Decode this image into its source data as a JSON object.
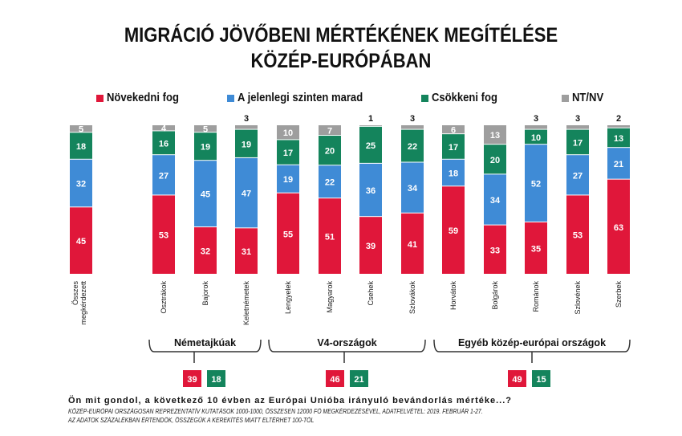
{
  "title_line1": "MIGRÁCIÓ JÖVŐBENI MÉRTÉKÉNEK MEGÍTÉLÉSE",
  "title_line2": "KÖZÉP-EURÓPÁBAN",
  "legend": [
    {
      "label": "Növekedni fog",
      "color": "#e0173a"
    },
    {
      "label": "A jelenlegi szinten marad",
      "color": "#3f8bd6"
    },
    {
      "label": "Csökkeni fog",
      "color": "#14845c"
    },
    {
      "label": "NT/NV",
      "color": "#9e9e9e"
    }
  ],
  "chart_data": {
    "type": "bar",
    "stacked": true,
    "title": "MIGRÁCIÓ JÖVŐBENI MÉRTÉKÉNEK MEGÍTÉLÉSE KÖZÉP-EURÓPÁBAN",
    "unit": "%",
    "categories": [
      "Összes megkérdezett",
      "Osztrákok",
      "Bajorok",
      "Keletnémetek",
      "Lengyelek",
      "Magyarok",
      "Csehek",
      "Szlovákok",
      "Horvátok",
      "Bolgárok",
      "Románok",
      "Szlovének",
      "Szerbek"
    ],
    "series": [
      {
        "name": "Növekedni fog",
        "color": "#e0173a",
        "values": [
          45,
          53,
          32,
          31,
          55,
          51,
          39,
          41,
          59,
          33,
          35,
          53,
          63
        ]
      },
      {
        "name": "A jelenlegi szinten marad",
        "color": "#3f8bd6",
        "values": [
          32,
          27,
          45,
          47,
          19,
          22,
          36,
          34,
          18,
          34,
          52,
          27,
          21
        ]
      },
      {
        "name": "Csökkeni fog",
        "color": "#14845c",
        "values": [
          18,
          16,
          19,
          19,
          17,
          20,
          25,
          22,
          17,
          20,
          10,
          17,
          13
        ]
      },
      {
        "name": "NT/NV",
        "color": "#9e9e9e",
        "values": [
          5,
          4,
          5,
          3,
          10,
          7,
          1,
          3,
          6,
          13,
          3,
          3,
          2
        ]
      }
    ],
    "groups": [
      {
        "label": "Németajkúak",
        "members": [
          "Osztrákok",
          "Bajorok",
          "Keletnémetek"
        ],
        "novekedni": 39,
        "csokkeni": 18
      },
      {
        "label": "V4-országok",
        "members": [
          "Lengyelek",
          "Magyarok",
          "Csehek",
          "Szlovákok"
        ],
        "novekedni": 46,
        "csokkeni": 21
      },
      {
        "label": "Egyéb közép-európai országok",
        "members": [
          "Horvátok",
          "Bolgárok",
          "Románok",
          "Szlovének",
          "Szerbek"
        ],
        "novekedni": 49,
        "csokkeni": 15
      }
    ],
    "ylim": [
      0,
      100
    ],
    "legend_position": "top"
  },
  "footer": {
    "question": "Ön mit gondol, a következő 10 évben az Európai Unióba irányuló bevándorlás mértéke...?",
    "note1": "KÖZÉP-EURÓPAI ORSZÁGOSAN REPREZENTATÍV KUTATÁSOK 1000-1000, ÖSSZESEN 12000 FŐ MEGKÉRDEZÉSÉVEL, ADATFELVÉTEL: 2019. FEBRUÁR 1-27.",
    "note2": "AZ ADATOK SZÁZALÉKBAN ÉRTENDŐK, ÖSSZEGÜK A KEREKÍTÉS MIATT ELTÉRHET 100-TÓL"
  }
}
